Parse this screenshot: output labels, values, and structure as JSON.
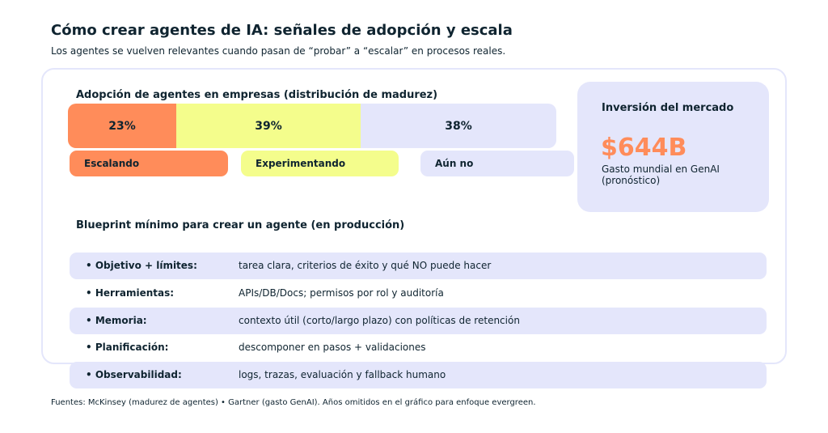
{
  "title": "Cómo crear agentes de IA: señales de adopción y escala",
  "subtitle": "Los agentes se vuelven relevantes cuando pasan de “probar” a “escalar” en procesos reales.",
  "adoption": {
    "heading": "Adopción de agentes en empresas (distribución de madurez)",
    "segments": [
      {
        "label": "Escalando",
        "value": 23,
        "display": "23%",
        "color": "#FF8C5A"
      },
      {
        "label": "Experimentando",
        "value": 39,
        "display": "39%",
        "color": "#F4FD8C"
      },
      {
        "label": "Aún no",
        "value": 38,
        "display": "38%",
        "color": "#E4E6FB"
      }
    ]
  },
  "investment": {
    "heading": "Inversión del mercado",
    "value": "$644B",
    "caption_line1": "Gasto mundial en GenAI",
    "caption_line2": "(pronóstico)",
    "value_color": "#FF8C5A"
  },
  "blueprint": {
    "heading": "Blueprint mínimo para crear un agente (en producción)",
    "rows": [
      {
        "key": "• Objetivo + límites:",
        "value": "tarea clara, criterios de éxito y qué NO puede hacer"
      },
      {
        "key": "• Herramientas:",
        "value": "APIs/DB/Docs; permisos por rol y auditoría"
      },
      {
        "key": "• Memoria:",
        "value": "contexto útil (corto/largo plazo) con políticas de retención"
      },
      {
        "key": "• Planificación:",
        "value": "descomponer en pasos + validaciones"
      },
      {
        "key": "• Observabilidad:",
        "value": "logs, trazas, evaluación y fallback humano"
      }
    ]
  },
  "footer": "Fuentes: McKinsey (madurez de agentes) • Gartner (gasto GenAI). Años omitidos en el gráfico para enfoque evergreen."
}
